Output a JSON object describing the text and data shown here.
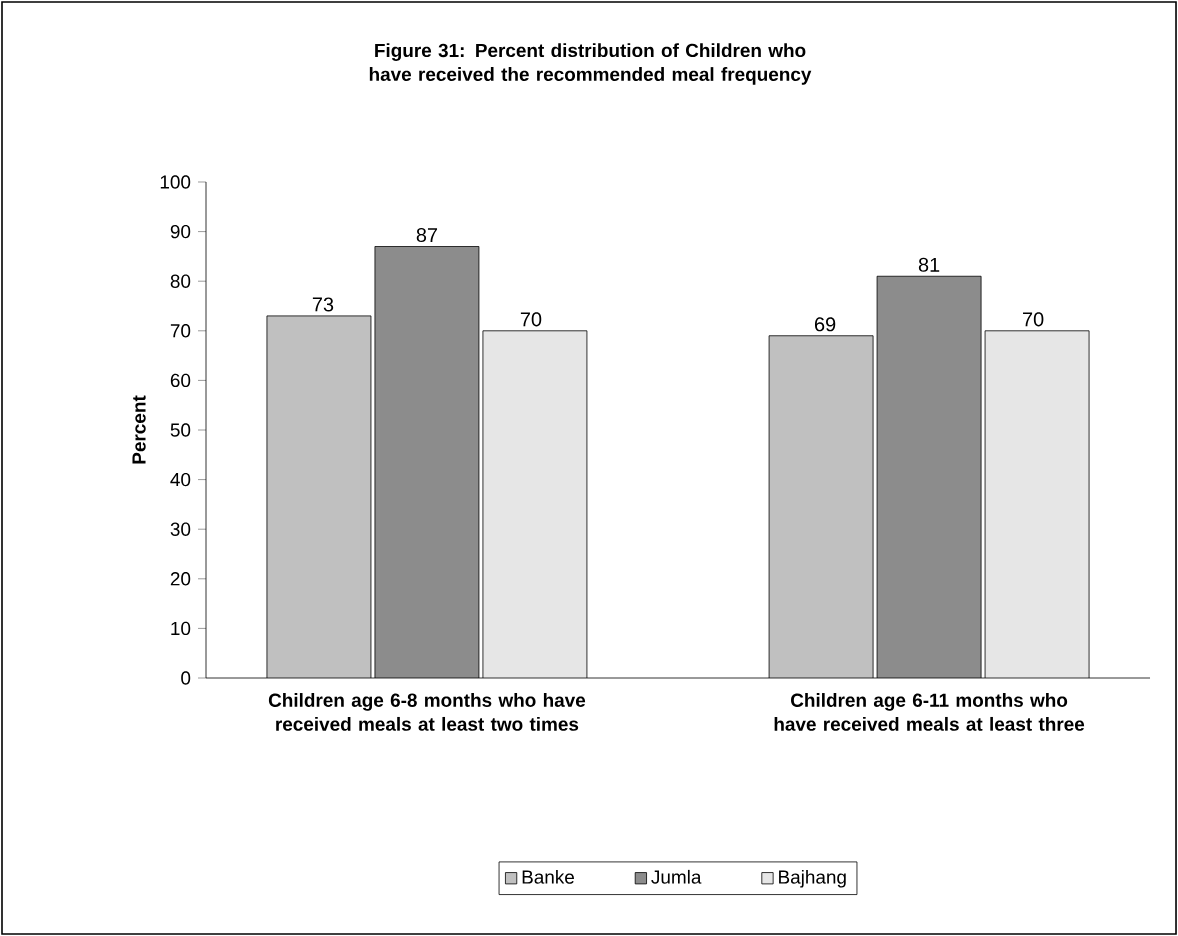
{
  "chart_data": {
    "type": "bar",
    "title": "Figure 31: Percent distribution of Children who have received the recommended meal frequency",
    "ylabel": "Percent",
    "categories": [
      "Children age 6-8 months who have received meals at least two times",
      "Children age 6-11 months who have received meals at least three"
    ],
    "series": [
      {
        "name": "Banke",
        "color": "#c0c0c0",
        "values": [
          73,
          69
        ]
      },
      {
        "name": "Jumla",
        "color": "#8c8c8c",
        "values": [
          87,
          81
        ]
      },
      {
        "name": "Bajhang",
        "color": "#e6e6e6",
        "values": [
          70,
          70
        ]
      }
    ],
    "ylim": [
      0,
      100
    ],
    "yticks": [
      0,
      10,
      20,
      30,
      40,
      50,
      60,
      70,
      80,
      90,
      100
    ],
    "data_labels": true,
    "legend": "bottom",
    "grid": false
  }
}
